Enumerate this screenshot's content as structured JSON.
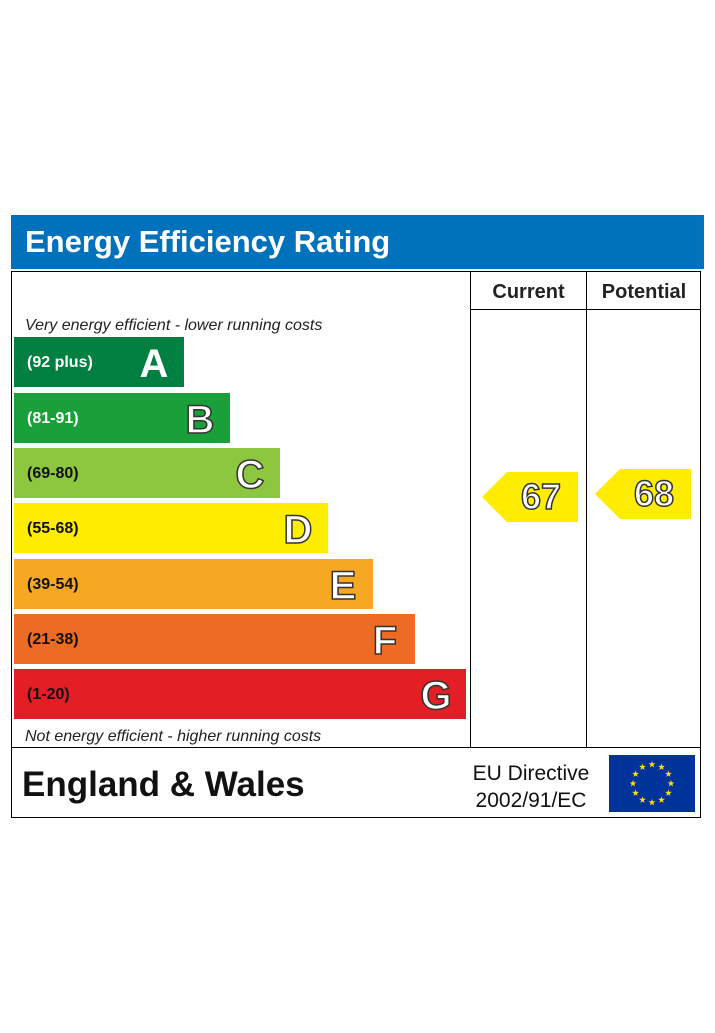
{
  "header": {
    "title": "Energy Efficiency Rating"
  },
  "columns": {
    "current": "Current",
    "potential": "Potential"
  },
  "notes": {
    "top": "Very energy efficient - lower running costs",
    "bottom": "Not energy efficient - higher running costs"
  },
  "bands": [
    {
      "range": "(92 plus)",
      "letter": "A",
      "color": "#008040",
      "range_color": "#ffffff"
    },
    {
      "range": "(81-91)",
      "letter": "B",
      "color": "#19a03a",
      "range_color": "#ffffff"
    },
    {
      "range": "(69-80)",
      "letter": "C",
      "color": "#8dc63f",
      "range_color": "#111111"
    },
    {
      "range": "(55-68)",
      "letter": "D",
      "color": "#ffed00",
      "range_color": "#111111"
    },
    {
      "range": "(39-54)",
      "letter": "E",
      "color": "#f7a823",
      "range_color": "#111111"
    },
    {
      "range": "(21-38)",
      "letter": "F",
      "color": "#ed6b24",
      "range_color": "#111111"
    },
    {
      "range": "(1-20)",
      "letter": "G",
      "color": "#e31e24",
      "range_color": "#111111"
    }
  ],
  "ratings": {
    "current": {
      "value": "67",
      "color": "#ffed00"
    },
    "potential": {
      "value": "68",
      "color": "#ffed00"
    }
  },
  "footer": {
    "country": "England & Wales",
    "directive_line1": "EU Directive",
    "directive_line2": "2002/91/EC"
  },
  "eu_flag": {
    "icon": "eu-flag-icon",
    "color": "#003399",
    "star_color": "#ffdd00"
  }
}
